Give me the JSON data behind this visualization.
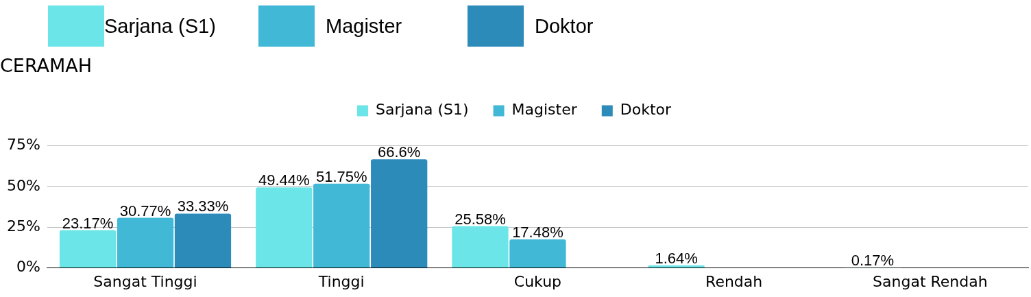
{
  "chart_data": {
    "type": "bar",
    "title": "CERAMAH",
    "categories": [
      "Sangat Tinggi",
      "Tinggi",
      "Cukup",
      "Rendah",
      "Sangat Rendah"
    ],
    "series": [
      {
        "name": "Sarjana (S1)",
        "color": "#6ce5e8",
        "values": [
          23.17,
          49.44,
          25.58,
          1.64,
          0.17
        ],
        "value_labels": [
          "23.17%",
          "49.44%",
          "25.58%",
          "1.64%",
          "0.17%"
        ]
      },
      {
        "name": "Magister",
        "color": "#41b8d5",
        "values": [
          30.77,
          51.75,
          17.48,
          null,
          null
        ],
        "value_labels": [
          "30.77%",
          "51.75%",
          "17.48%",
          null,
          null
        ]
      },
      {
        "name": "Doktor",
        "color": "#2d8bba",
        "values": [
          33.33,
          66.6,
          null,
          null,
          null
        ],
        "value_labels": [
          "33.33%",
          "66.6%",
          null,
          null,
          null
        ]
      }
    ],
    "ylim": [
      0,
      75
    ],
    "yticks": [
      {
        "value": 0,
        "label": "0%"
      },
      {
        "value": 25,
        "label": "25%"
      },
      {
        "value": 50,
        "label": "50%"
      },
      {
        "value": 75,
        "label": "75%"
      }
    ],
    "grid": "y",
    "legend": "top"
  }
}
